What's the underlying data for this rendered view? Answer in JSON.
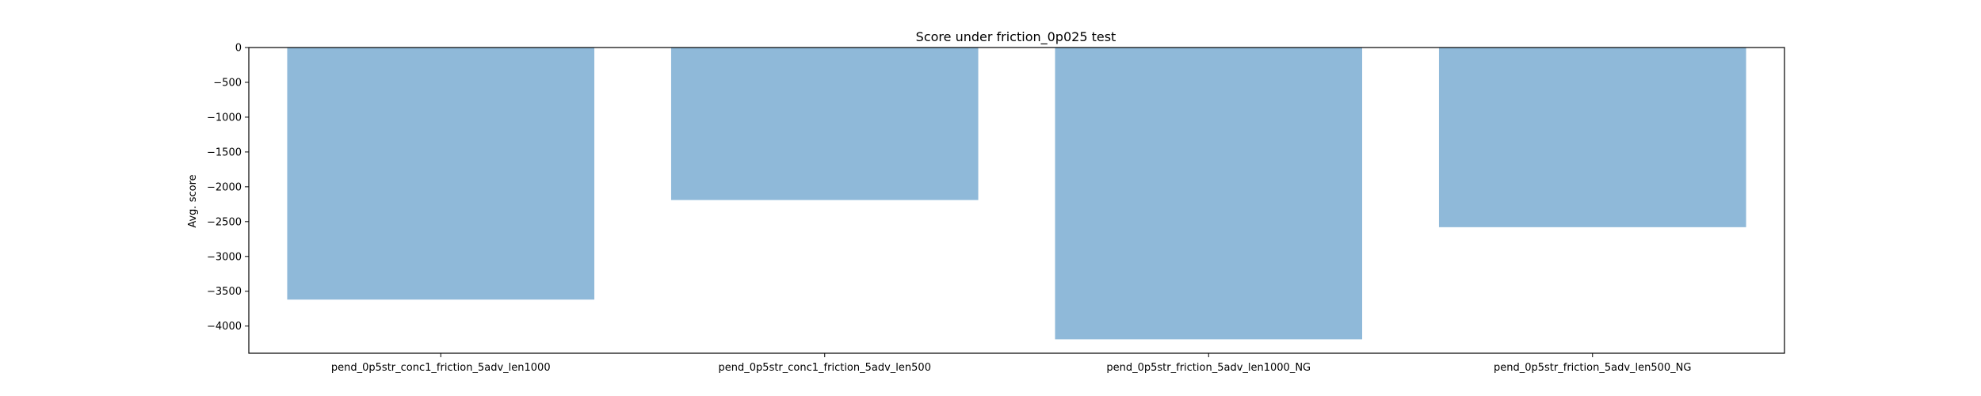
{
  "chart_data": {
    "type": "bar",
    "title": "Score under friction_0p025 test",
    "xlabel": "",
    "ylabel": "Avg. score",
    "categories": [
      "pend_0p5str_conc1_friction_5adv_len1000",
      "pend_0p5str_conc1_friction_5adv_len500",
      "pend_0p5str_friction_5adv_len1000_NG",
      "pend_0p5str_friction_5adv_len500_NG"
    ],
    "values": [
      -3620,
      -2190,
      -4190,
      -2580
    ],
    "ylim": [
      -4390,
      0
    ],
    "yticks": [
      0,
      -500,
      -1000,
      -1500,
      -2000,
      -2500,
      -3000,
      -3500,
      -4000
    ],
    "ytick_labels": [
      "0",
      "−500",
      "−1000",
      "−1500",
      "−2000",
      "−2500",
      "−3000",
      "−3500",
      "−4000"
    ],
    "bar_color": "#8fb9d9",
    "grid": false,
    "legend": "none"
  }
}
